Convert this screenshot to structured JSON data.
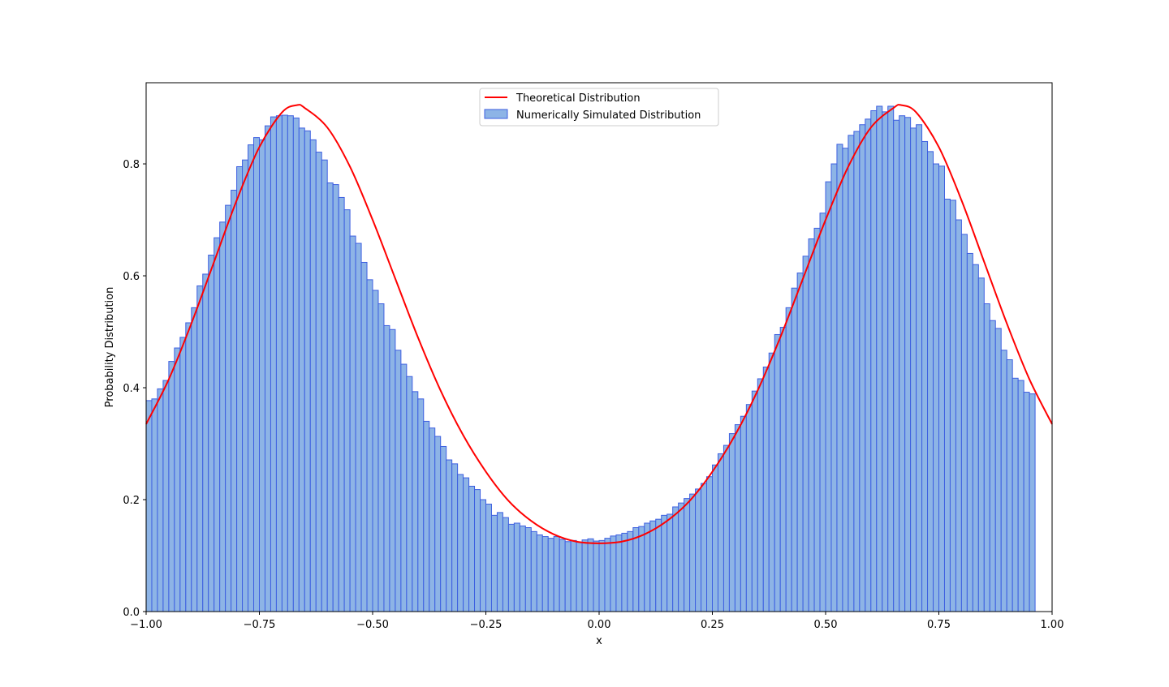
{
  "chart_data": {
    "type": "bar",
    "title": "",
    "xlabel": "x",
    "ylabel": "Probability Distribution",
    "xlim": [
      -1.0,
      1.0
    ],
    "ylim": [
      0.0,
      0.945
    ],
    "xticks": [
      -1.0,
      -0.75,
      -0.5,
      -0.25,
      0.0,
      0.25,
      0.5,
      0.75,
      1.0
    ],
    "xtick_labels": [
      "−1.00",
      "−0.75",
      "−0.50",
      "−0.25",
      "0.00",
      "0.25",
      "0.50",
      "0.75",
      "1.00"
    ],
    "yticks": [
      0.0,
      0.2,
      0.4,
      0.6,
      0.8
    ],
    "ytick_labels": [
      "0.0",
      "0.2",
      "0.4",
      "0.6",
      "0.8"
    ],
    "grid": false,
    "legend": {
      "placement": "upper center"
    },
    "colors": {
      "line": "#ff0000",
      "bar_fill": "#8db4e6",
      "bar_edge": "#3d5fe0"
    },
    "series": [
      {
        "name": "Theoretical Distribution",
        "kind": "line",
        "x": [
          -1.0,
          -0.95,
          -0.9,
          -0.85,
          -0.8,
          -0.75,
          -0.7,
          -0.667,
          -0.65,
          -0.6,
          -0.55,
          -0.5,
          -0.45,
          -0.4,
          -0.35,
          -0.3,
          -0.25,
          -0.2,
          -0.15,
          -0.1,
          -0.05,
          0.0,
          0.05,
          0.1,
          0.15,
          0.2,
          0.25,
          0.3,
          0.35,
          0.4,
          0.45,
          0.5,
          0.55,
          0.6,
          0.65,
          0.667,
          0.7,
          0.75,
          0.8,
          0.85,
          0.9,
          0.95,
          1.0
        ],
        "y": [
          0.335,
          0.415,
          0.515,
          0.625,
          0.735,
          0.83,
          0.892,
          0.905,
          0.9,
          0.865,
          0.795,
          0.7,
          0.595,
          0.49,
          0.395,
          0.315,
          0.25,
          0.198,
          0.162,
          0.138,
          0.125,
          0.122,
          0.125,
          0.138,
          0.162,
          0.198,
          0.25,
          0.315,
          0.395,
          0.49,
          0.595,
          0.7,
          0.795,
          0.865,
          0.9,
          0.905,
          0.892,
          0.83,
          0.735,
          0.625,
          0.515,
          0.415,
          0.335
        ]
      },
      {
        "name": "Numerically Simulated Distribution",
        "kind": "histogram",
        "bin_start": -1.0,
        "bin_width": 0.0125,
        "values": [
          0.377,
          0.38,
          0.398,
          0.413,
          0.447,
          0.471,
          0.49,
          0.516,
          0.543,
          0.582,
          0.603,
          0.637,
          0.668,
          0.696,
          0.726,
          0.753,
          0.795,
          0.807,
          0.834,
          0.847,
          0.843,
          0.868,
          0.884,
          0.886,
          0.887,
          0.886,
          0.882,
          0.864,
          0.859,
          0.843,
          0.821,
          0.807,
          0.766,
          0.763,
          0.74,
          0.718,
          0.671,
          0.658,
          0.624,
          0.593,
          0.574,
          0.55,
          0.511,
          0.504,
          0.467,
          0.442,
          0.42,
          0.393,
          0.38,
          0.34,
          0.328,
          0.313,
          0.295,
          0.271,
          0.264,
          0.245,
          0.239,
          0.224,
          0.218,
          0.2,
          0.192,
          0.172,
          0.177,
          0.168,
          0.156,
          0.158,
          0.153,
          0.15,
          0.143,
          0.137,
          0.134,
          0.131,
          0.134,
          0.129,
          0.125,
          0.127,
          0.124,
          0.128,
          0.13,
          0.126,
          0.127,
          0.131,
          0.135,
          0.137,
          0.14,
          0.143,
          0.15,
          0.152,
          0.158,
          0.162,
          0.165,
          0.172,
          0.174,
          0.187,
          0.194,
          0.202,
          0.21,
          0.219,
          0.229,
          0.241,
          0.262,
          0.282,
          0.297,
          0.318,
          0.334,
          0.349,
          0.37,
          0.394,
          0.416,
          0.437,
          0.462,
          0.495,
          0.508,
          0.543,
          0.578,
          0.605,
          0.635,
          0.666,
          0.685,
          0.712,
          0.768,
          0.8,
          0.835,
          0.828,
          0.851,
          0.858,
          0.87,
          0.88,
          0.895,
          0.903,
          0.893,
          0.903,
          0.878,
          0.886,
          0.883,
          0.864,
          0.87,
          0.84,
          0.822,
          0.8,
          0.796,
          0.737,
          0.735,
          0.7,
          0.674,
          0.64,
          0.62,
          0.596,
          0.55,
          0.52,
          0.506,
          0.467,
          0.45,
          0.417,
          0.413,
          0.392,
          0.389
        ]
      }
    ]
  }
}
